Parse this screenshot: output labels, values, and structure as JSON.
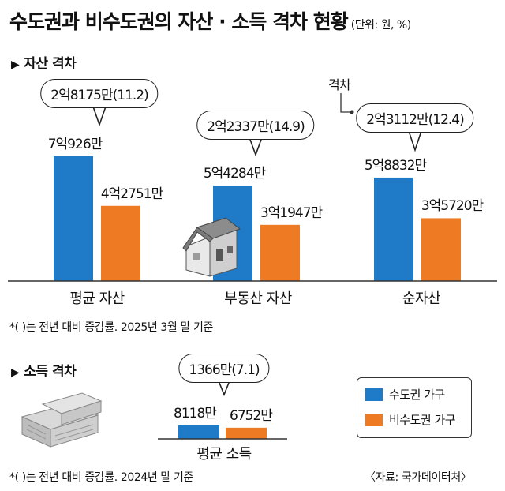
{
  "title": "수도권과 비수도권의 자산 · 소득 격차 현황",
  "unit": "(단위: 원, %)",
  "colors": {
    "capital": "#1f7ac7",
    "noncapital": "#ee7b23"
  },
  "legend": {
    "capital": "수도권 가구",
    "noncapital": "비수도권 가구"
  },
  "source": "〈자료: 국가데이터처〉",
  "chart_data": [
    {
      "type": "bar",
      "section_title": "자산 격차",
      "categories": [
        "평균 자산",
        "부동산 자산",
        "순자산"
      ],
      "unit": "만원",
      "series": [
        {
          "name": "수도권 가구",
          "values": [
            70926,
            54284,
            58832
          ],
          "labels": [
            "7억926만",
            "5억4284만",
            "5억8832만"
          ]
        },
        {
          "name": "비수도권 가구",
          "values": [
            42751,
            31947,
            35720
          ],
          "labels": [
            "4억2751만",
            "3억1947만",
            "3억5720만"
          ]
        }
      ],
      "gaps": [
        "2억8175만(11.2)",
        "2억2337만(14.9)",
        "2억3112만(12.4)"
      ],
      "annotation": "격차",
      "footnote": "*( )는 전년 대비 증감률. 2025년 3월 말 기준"
    },
    {
      "type": "bar",
      "section_title": "소득 격차",
      "categories": [
        "평균 소득"
      ],
      "unit": "만원",
      "series": [
        {
          "name": "수도권 가구",
          "values": [
            8118
          ],
          "labels": [
            "8118만"
          ]
        },
        {
          "name": "비수도권 가구",
          "values": [
            6752
          ],
          "labels": [
            "6752만"
          ]
        }
      ],
      "gaps": [
        "1366만(7.1)"
      ],
      "footnote": "*( )는 전년 대비 증감률. 2024년 말 기준"
    }
  ]
}
